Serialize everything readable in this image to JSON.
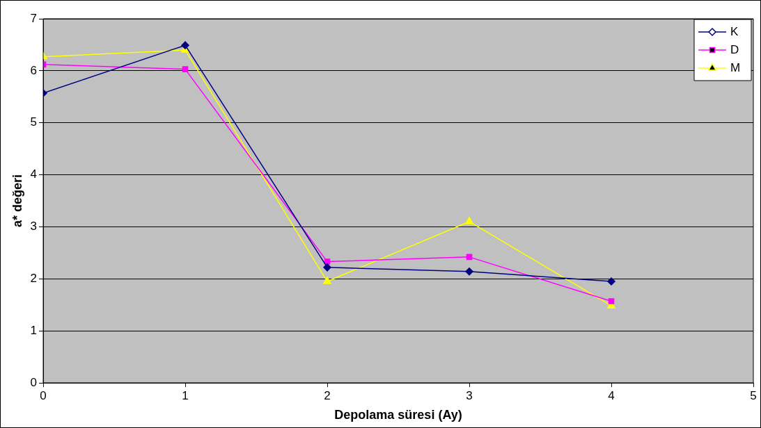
{
  "chart_data": {
    "type": "line",
    "xlabel": "Depolama süresi (Ay)",
    "ylabel": "a* değeri",
    "x": [
      0,
      1,
      2,
      3,
      4
    ],
    "series": [
      {
        "name": "K",
        "color": "#000080",
        "marker": "diamond",
        "values": [
          5.57,
          6.49,
          2.22,
          2.14,
          1.95
        ]
      },
      {
        "name": "D",
        "color": "#ff00ff",
        "marker": "square",
        "values": [
          6.12,
          6.03,
          2.33,
          2.42,
          1.57
        ]
      },
      {
        "name": "M",
        "color": "#ffff00",
        "marker": "triangle",
        "values": [
          6.27,
          6.4,
          1.95,
          3.1,
          1.48
        ]
      }
    ],
    "xlim": [
      0,
      5
    ],
    "xticks": [
      0,
      1,
      2,
      3,
      4,
      5
    ],
    "ylim": [
      0,
      7
    ],
    "yticks": [
      0,
      1,
      2,
      3,
      4,
      5,
      6,
      7
    ],
    "grid": "y",
    "legend": "top right"
  }
}
